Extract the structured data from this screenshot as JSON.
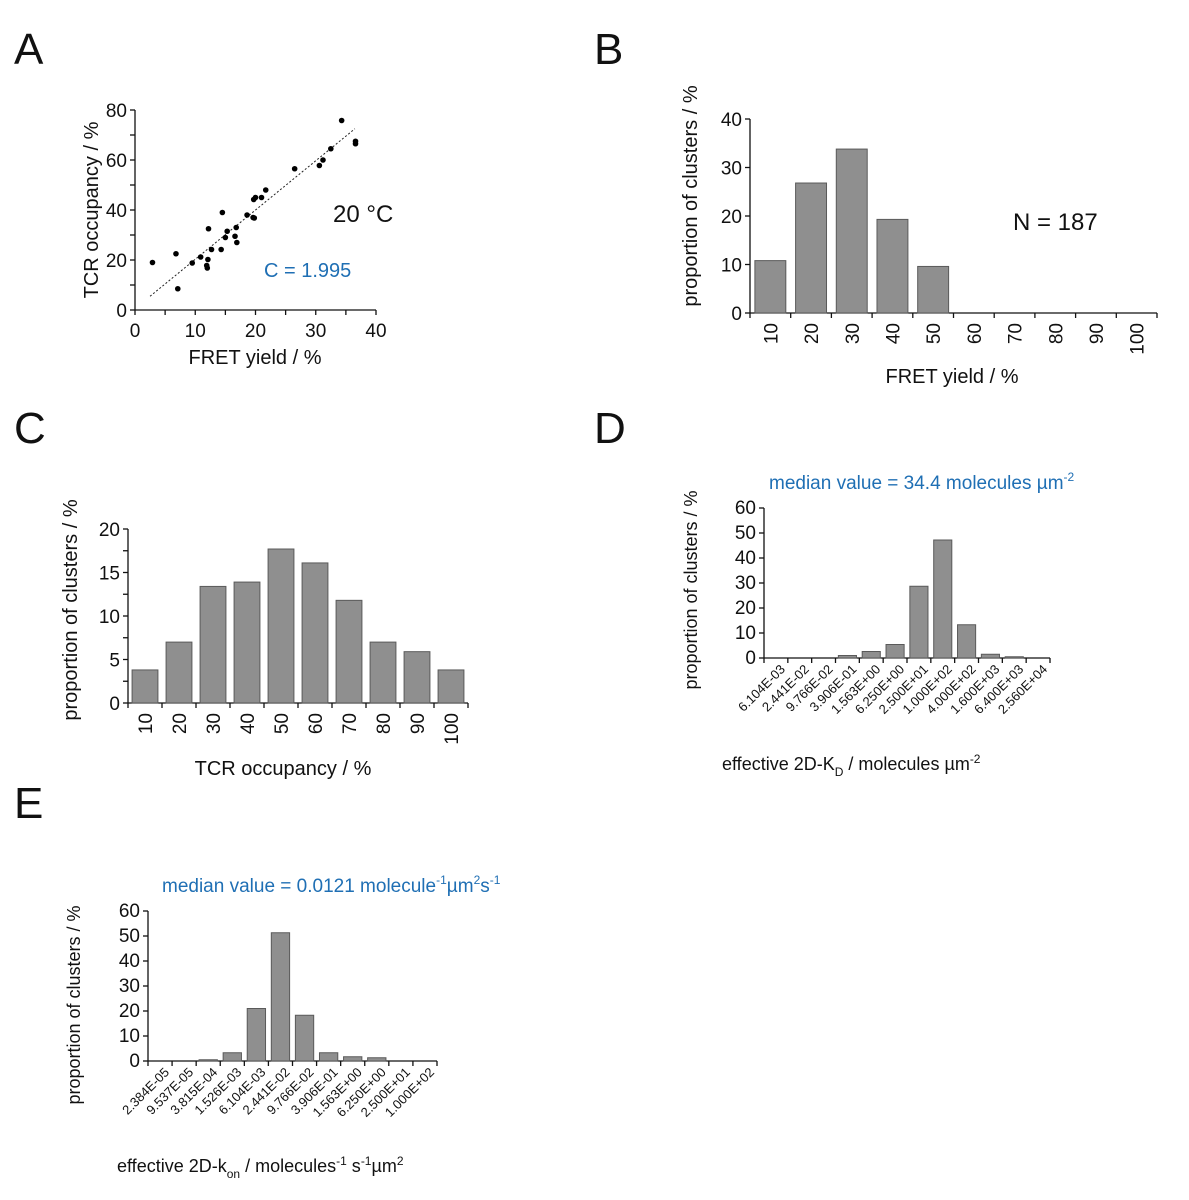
{
  "colors": {
    "bar": "#8f8f8f",
    "bar_edge": "#5a5a5a",
    "accent_blue": "#1f6fb4",
    "axis": "#111111"
  },
  "chart_data": [
    {
      "panel": "A",
      "type": "scatter",
      "xlabel": "FRET yield / %",
      "ylabel": "TCR occupancy / %",
      "xlim": [
        0,
        40
      ],
      "ylim": [
        0,
        80
      ],
      "xticks": [
        0,
        10,
        20,
        30,
        40
      ],
      "yticks": [
        0,
        20,
        40,
        60,
        80
      ],
      "annotations": {
        "temperature": "20 °C",
        "constant": "C = 1.995"
      },
      "fit_line": {
        "x": [
          2.5,
          36.5
        ],
        "y": [
          5.5,
          72.5
        ]
      },
      "points": [
        [
          2.9,
          19
        ],
        [
          6.8,
          22.5
        ],
        [
          7.1,
          8.5
        ],
        [
          9.5,
          18.8
        ],
        [
          10.9,
          21.2
        ],
        [
          11.9,
          17.8
        ],
        [
          12.0,
          16.8
        ],
        [
          12.1,
          20.2
        ],
        [
          12.2,
          32.5
        ],
        [
          12.7,
          24.2
        ],
        [
          14.3,
          24.2
        ],
        [
          14.5,
          39
        ],
        [
          15.0,
          29
        ],
        [
          15.3,
          31.5
        ],
        [
          16.6,
          29.5
        ],
        [
          16.8,
          33
        ],
        [
          16.9,
          27
        ],
        [
          18.6,
          38
        ],
        [
          19.6,
          37
        ],
        [
          19.8,
          36.8
        ],
        [
          19.7,
          44.2
        ],
        [
          20.0,
          45
        ],
        [
          21.0,
          45
        ],
        [
          21.7,
          48
        ],
        [
          26.5,
          56.5
        ],
        [
          30.6,
          57.8
        ],
        [
          31.2,
          60
        ],
        [
          32.5,
          64.5
        ],
        [
          34.3,
          75.8
        ],
        [
          36.6,
          67.5
        ],
        [
          36.6,
          66.5
        ]
      ]
    },
    {
      "panel": "B",
      "type": "bar",
      "xlabel": "FRET yield / %",
      "ylabel": "proportion of clusters / %",
      "categories": [
        "10",
        "20",
        "30",
        "40",
        "50",
        "60",
        "70",
        "80",
        "90",
        "100"
      ],
      "values": [
        10.8,
        26.8,
        33.8,
        19.3,
        9.6,
        0,
        0,
        0,
        0,
        0
      ],
      "ylim": [
        0,
        40
      ],
      "yticks": [
        0,
        10,
        20,
        30,
        40
      ],
      "annotation": "N = 187"
    },
    {
      "panel": "C",
      "type": "bar",
      "xlabel": "TCR occupancy / %",
      "ylabel": "proportion of clusters / %",
      "categories": [
        "10",
        "20",
        "30",
        "40",
        "50",
        "60",
        "70",
        "80",
        "90",
        "100"
      ],
      "values": [
        3.8,
        7.0,
        13.4,
        13.9,
        17.7,
        16.1,
        11.8,
        7.0,
        5.9,
        3.8
      ],
      "ylim": [
        0,
        20
      ],
      "yticks": [
        0,
        5,
        10,
        15,
        20
      ]
    },
    {
      "panel": "D",
      "type": "bar",
      "title": "median value = 34.4 molecules µm",
      "title_sup": "-2",
      "xlabel_main": "effective 2D-K",
      "xlabel_sub": "D",
      "xlabel_tail": " / molecules µm",
      "xlabel_sup": "-2",
      "ylabel": "proportion of clusters / %",
      "categories": [
        "6.104E-03",
        "2.441E-02",
        "9.766E-02",
        "3.906E-01",
        "1.563E+00",
        "6.250E+00",
        "2.500E+01",
        "1.000E+02",
        "4.000E+02",
        "1.600E+03",
        "6.400E+03",
        "2.560E+04"
      ],
      "values": [
        0,
        0,
        0,
        1.0,
        2.6,
        5.4,
        28.7,
        47.2,
        13.3,
        1.5,
        0.5,
        0
      ],
      "ylim": [
        0,
        60
      ],
      "yticks": [
        0,
        10,
        20,
        30,
        40,
        50,
        60
      ]
    },
    {
      "panel": "E",
      "type": "bar",
      "title": "median value = 0.0121 molecule",
      "title_sup1": "-1",
      "title_mid": "µm",
      "title_sup2": "2",
      "title_mid2": "s",
      "title_sup3": "-1",
      "xlabel_main": "effective 2D-k",
      "xlabel_sub": "on",
      "xlabel_tail": " / molecules",
      "xlabel_sup1": "-1",
      "xlabel_mid": " s",
      "xlabel_sup2": "-1",
      "xlabel_mid2": "µm",
      "xlabel_sup3": "2",
      "ylabel": "proportion of clusters / %",
      "categories": [
        "2.384E-05",
        "9.537E-05",
        "3.815E-04",
        "1.526E-03",
        "6.104E-03",
        "2.441E-02",
        "9.766E-02",
        "3.906E-01",
        "1.563E+00",
        "6.250E+00",
        "2.500E+01",
        "1.000E+02"
      ],
      "values": [
        0,
        0,
        0.5,
        3.3,
        21.0,
        51.3,
        18.3,
        3.3,
        1.7,
        1.3,
        0,
        0
      ],
      "ylim": [
        0,
        60
      ],
      "yticks": [
        0,
        10,
        20,
        30,
        40,
        50,
        60
      ]
    }
  ],
  "panel_letters": [
    "A",
    "B",
    "C",
    "D",
    "E"
  ]
}
